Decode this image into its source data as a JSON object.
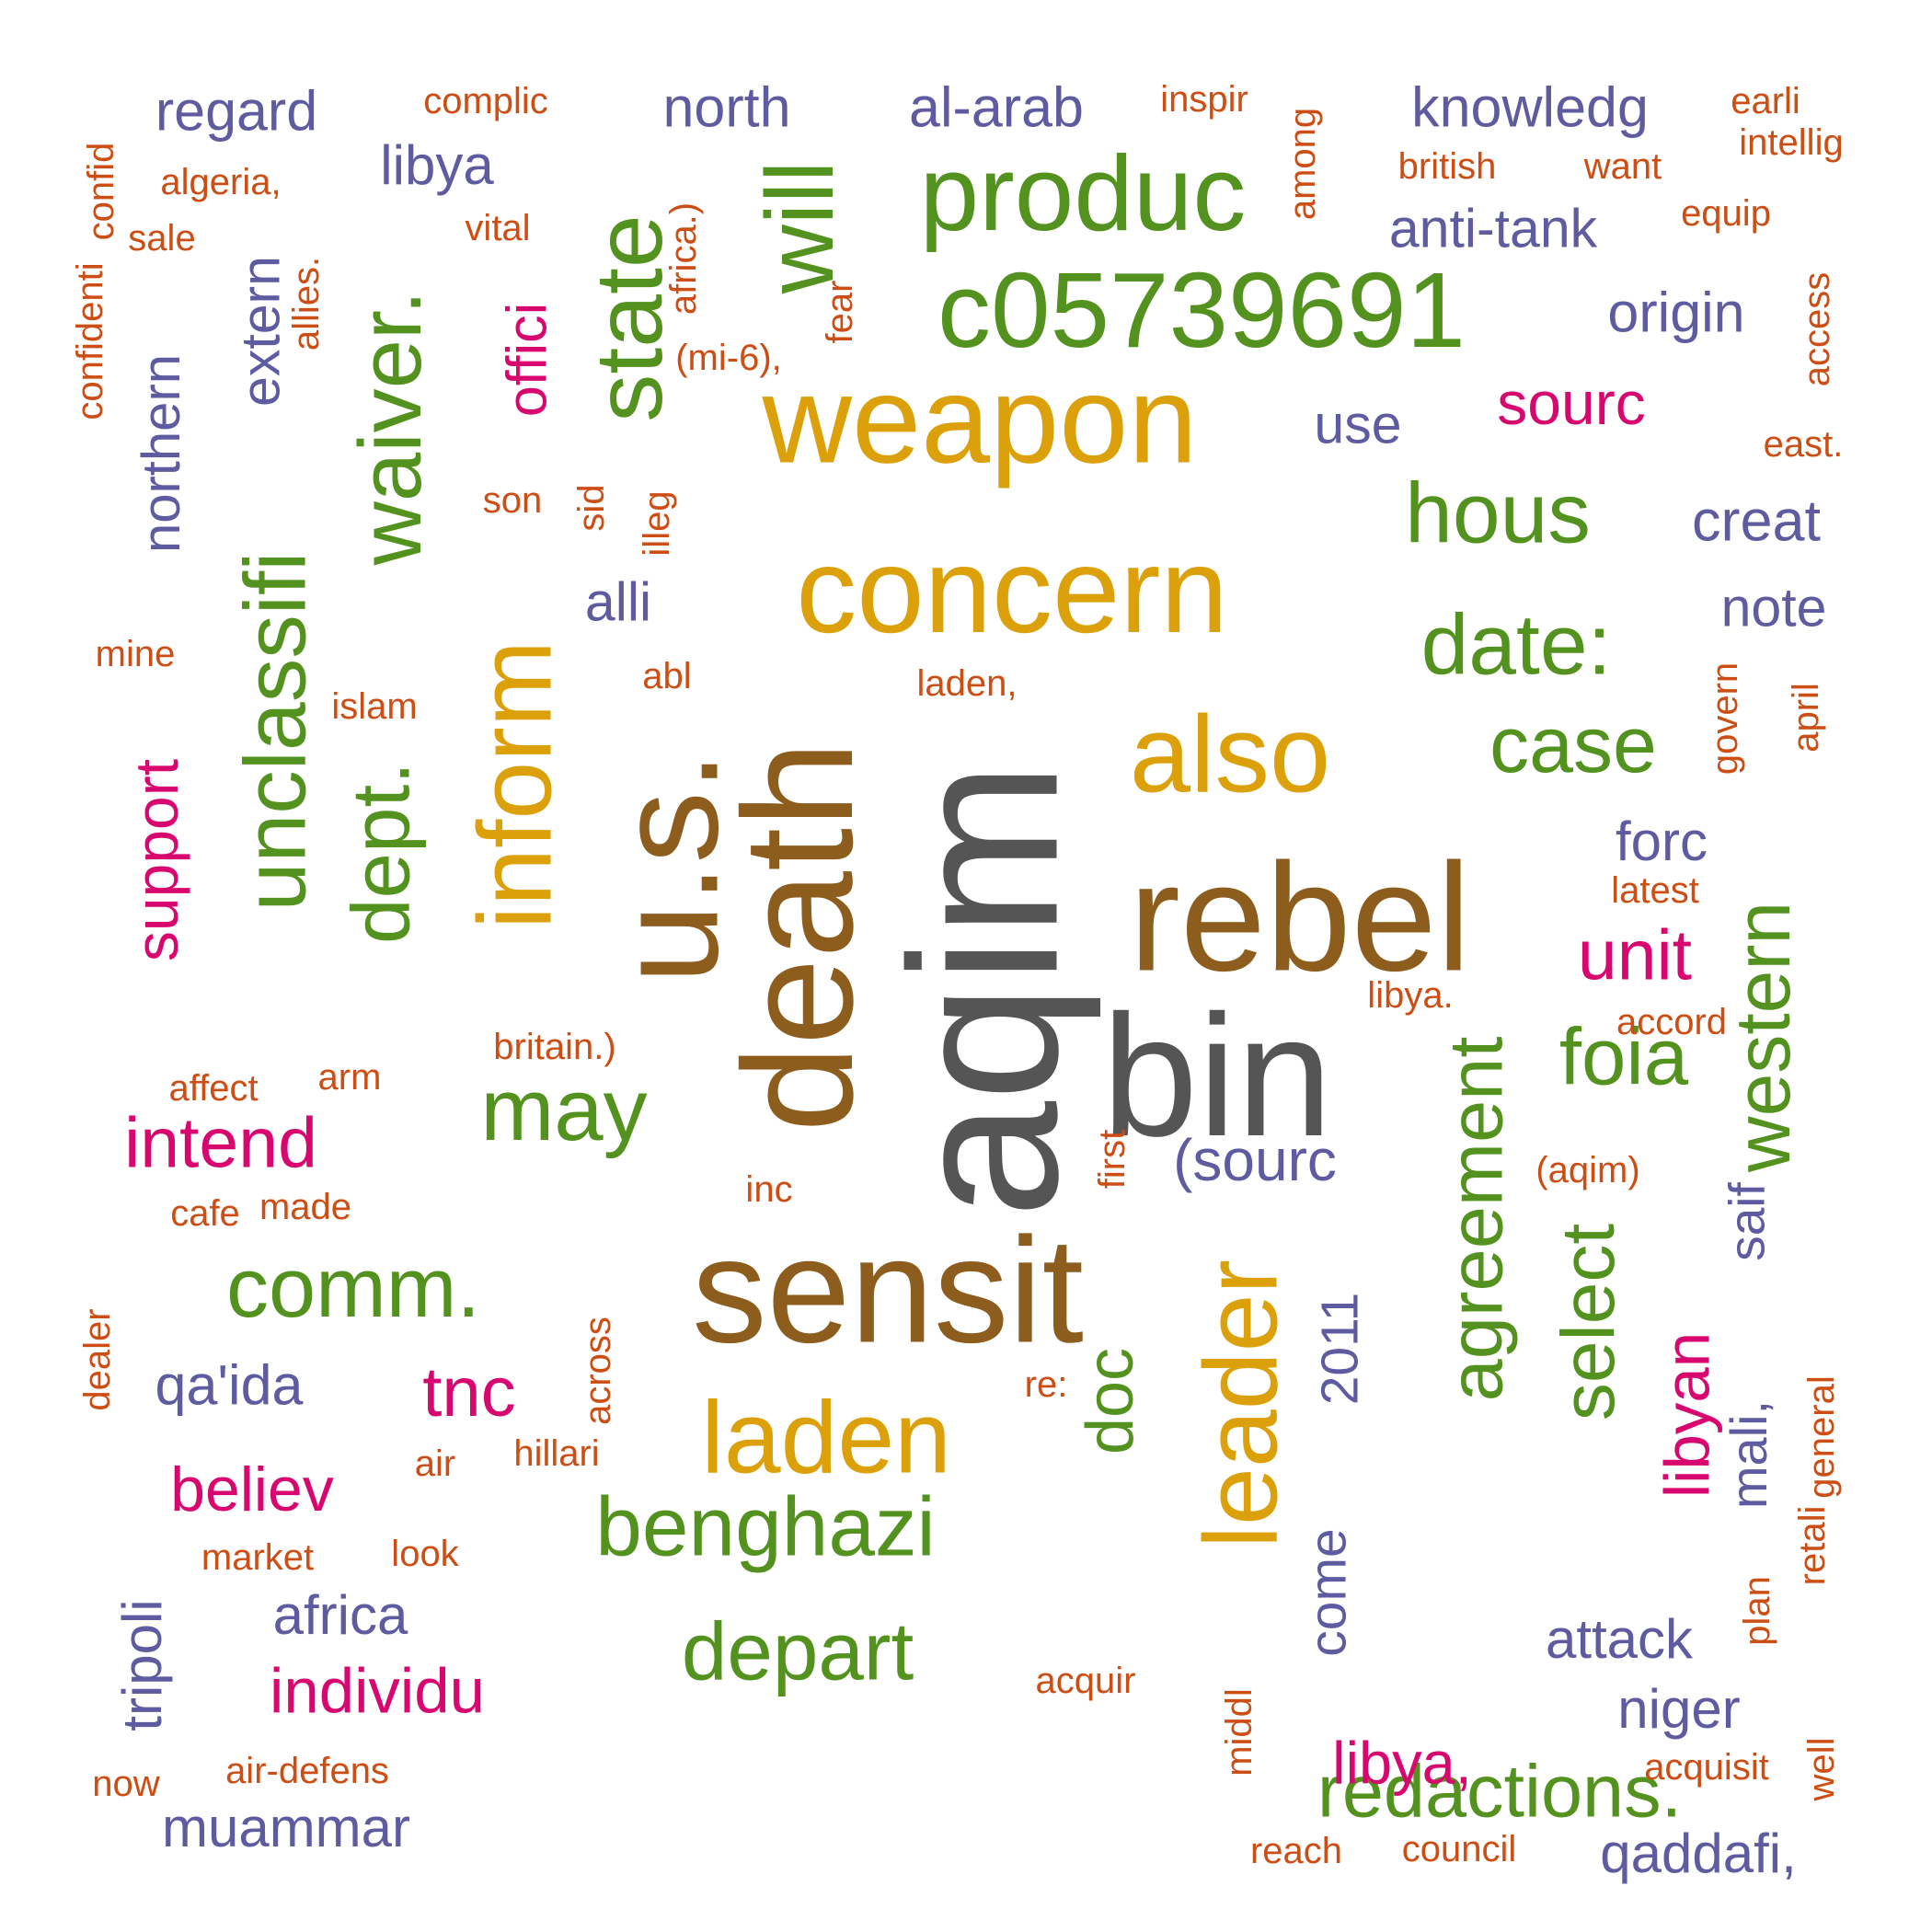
{
  "colors": {
    "dark_gray": "#555555",
    "brown": "#8c5d1c",
    "gold": "#dca00a",
    "green": "#53921e",
    "magenta": "#d8076f",
    "purple": "#5e5ba0",
    "orange": "#cc4e14"
  },
  "words": [
    {
      "text": "aqim",
      "color": "dark_gray"
    },
    {
      "text": "bin",
      "color": "dark_gray"
    },
    {
      "text": "death",
      "color": "brown"
    },
    {
      "text": "rebel",
      "color": "brown"
    },
    {
      "text": "sensit",
      "color": "brown"
    },
    {
      "text": "u.s.",
      "color": "brown"
    },
    {
      "text": "weapon",
      "color": "gold"
    },
    {
      "text": "concern",
      "color": "gold"
    },
    {
      "text": "also",
      "color": "gold"
    },
    {
      "text": "inform",
      "color": "gold"
    },
    {
      "text": "laden",
      "color": "gold"
    },
    {
      "text": "leader",
      "color": "gold"
    },
    {
      "text": "c05739691",
      "color": "green"
    },
    {
      "text": "produc",
      "color": "green"
    },
    {
      "text": "will",
      "color": "green"
    },
    {
      "text": "state",
      "color": "green"
    },
    {
      "text": "waiver.",
      "color": "green"
    },
    {
      "text": "unclassifi",
      "color": "green"
    },
    {
      "text": "dept.",
      "color": "green"
    },
    {
      "text": "hous",
      "color": "green"
    },
    {
      "text": "date:",
      "color": "green"
    },
    {
      "text": "case",
      "color": "green"
    },
    {
      "text": "foia",
      "color": "green"
    },
    {
      "text": "western",
      "color": "green"
    },
    {
      "text": "agreement",
      "color": "green"
    },
    {
      "text": "select",
      "color": "green"
    },
    {
      "text": "may",
      "color": "green"
    },
    {
      "text": "comm.",
      "color": "green"
    },
    {
      "text": "benghazi",
      "color": "green"
    },
    {
      "text": "depart",
      "color": "green"
    },
    {
      "text": "redactions.",
      "color": "green"
    },
    {
      "text": "doc",
      "color": "green"
    },
    {
      "text": "offici",
      "color": "magenta"
    },
    {
      "text": "sourc",
      "color": "magenta"
    },
    {
      "text": "unit",
      "color": "magenta"
    },
    {
      "text": "support",
      "color": "magenta"
    },
    {
      "text": "intend",
      "color": "magenta"
    },
    {
      "text": "tnc",
      "color": "magenta"
    },
    {
      "text": "believ",
      "color": "magenta"
    },
    {
      "text": "individu",
      "color": "magenta"
    },
    {
      "text": "libyan",
      "color": "magenta"
    },
    {
      "text": "libya,",
      "color": "magenta"
    },
    {
      "text": "regard",
      "color": "purple"
    },
    {
      "text": "north",
      "color": "purple"
    },
    {
      "text": "al-arab",
      "color": "purple"
    },
    {
      "text": "knowledg",
      "color": "purple"
    },
    {
      "text": "libya",
      "color": "purple"
    },
    {
      "text": "anti-tank",
      "color": "purple"
    },
    {
      "text": "origin",
      "color": "purple"
    },
    {
      "text": "extern",
      "color": "purple"
    },
    {
      "text": "northern",
      "color": "purple"
    },
    {
      "text": "use",
      "color": "purple"
    },
    {
      "text": "creat",
      "color": "purple"
    },
    {
      "text": "alli",
      "color": "purple"
    },
    {
      "text": "note",
      "color": "purple"
    },
    {
      "text": "forc",
      "color": "purple"
    },
    {
      "text": "(sourc",
      "color": "purple"
    },
    {
      "text": "2011",
      "color": "purple"
    },
    {
      "text": "saif",
      "color": "purple"
    },
    {
      "text": "qa'ida",
      "color": "purple"
    },
    {
      "text": "mali,",
      "color": "purple"
    },
    {
      "text": "africa",
      "color": "purple"
    },
    {
      "text": "come",
      "color": "purple"
    },
    {
      "text": "attack",
      "color": "purple"
    },
    {
      "text": "niger",
      "color": "purple"
    },
    {
      "text": "tripoli",
      "color": "purple"
    },
    {
      "text": "muammar",
      "color": "purple"
    },
    {
      "text": "qaddafi,",
      "color": "purple"
    },
    {
      "text": "complic",
      "color": "orange"
    },
    {
      "text": "inspir",
      "color": "orange"
    },
    {
      "text": "earli",
      "color": "orange"
    },
    {
      "text": "intellig",
      "color": "orange"
    },
    {
      "text": "algeria,",
      "color": "orange"
    },
    {
      "text": "british",
      "color": "orange"
    },
    {
      "text": "want",
      "color": "orange"
    },
    {
      "text": "confid",
      "color": "orange"
    },
    {
      "text": "sale",
      "color": "orange"
    },
    {
      "text": "vital",
      "color": "orange"
    },
    {
      "text": "equip",
      "color": "orange"
    },
    {
      "text": "among",
      "color": "orange"
    },
    {
      "text": "africa.)",
      "color": "orange"
    },
    {
      "text": "allies.",
      "color": "orange"
    },
    {
      "text": "confidenti",
      "color": "orange"
    },
    {
      "text": "(mi-6),",
      "color": "orange"
    },
    {
      "text": "fear",
      "color": "orange"
    },
    {
      "text": "access",
      "color": "orange"
    },
    {
      "text": "east.",
      "color": "orange"
    },
    {
      "text": "son",
      "color": "orange"
    },
    {
      "text": "sid",
      "color": "orange"
    },
    {
      "text": "illeg",
      "color": "orange"
    },
    {
      "text": "mine",
      "color": "orange"
    },
    {
      "text": "abl",
      "color": "orange"
    },
    {
      "text": "islam",
      "color": "orange"
    },
    {
      "text": "laden,",
      "color": "orange"
    },
    {
      "text": "govern",
      "color": "orange"
    },
    {
      "text": "april",
      "color": "orange"
    },
    {
      "text": "latest",
      "color": "orange"
    },
    {
      "text": "libya.",
      "color": "orange"
    },
    {
      "text": "accord",
      "color": "orange"
    },
    {
      "text": "britain.)",
      "color": "orange"
    },
    {
      "text": "affect",
      "color": "orange"
    },
    {
      "text": "arm",
      "color": "orange"
    },
    {
      "text": "cafe",
      "color": "orange"
    },
    {
      "text": "made",
      "color": "orange"
    },
    {
      "text": "inc",
      "color": "orange"
    },
    {
      "text": "first",
      "color": "orange"
    },
    {
      "text": "(aqim)",
      "color": "orange"
    },
    {
      "text": "dealer",
      "color": "orange"
    },
    {
      "text": "across",
      "color": "orange"
    },
    {
      "text": "re:",
      "color": "orange"
    },
    {
      "text": "hillari",
      "color": "orange"
    },
    {
      "text": "air",
      "color": "orange"
    },
    {
      "text": "general",
      "color": "orange"
    },
    {
      "text": "market",
      "color": "orange"
    },
    {
      "text": "look",
      "color": "orange"
    },
    {
      "text": "retali",
      "color": "orange"
    },
    {
      "text": "plan",
      "color": "orange"
    },
    {
      "text": "acquir",
      "color": "orange"
    },
    {
      "text": "middl",
      "color": "orange"
    },
    {
      "text": "acquisit",
      "color": "orange"
    },
    {
      "text": "well",
      "color": "orange"
    },
    {
      "text": "now",
      "color": "orange"
    },
    {
      "text": "air-defens",
      "color": "orange"
    },
    {
      "text": "reach",
      "color": "orange"
    },
    {
      "text": "council",
      "color": "orange"
    }
  ]
}
